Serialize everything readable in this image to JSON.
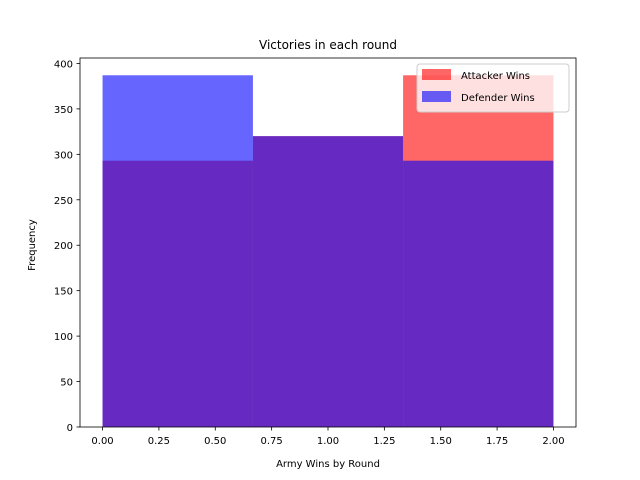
{
  "chart_data": {
    "type": "bar",
    "title": "Victories in each round",
    "xlabel": "Army Wins by Round",
    "ylabel": "Frequency",
    "xlim": [
      -0.1,
      2.1
    ],
    "ylim": [
      0,
      406
    ],
    "xticks": [
      0.0,
      0.25,
      0.5,
      0.75,
      1.0,
      1.25,
      1.5,
      1.75,
      2.0
    ],
    "xtick_labels": [
      "0.00",
      "0.25",
      "0.50",
      "0.75",
      "1.00",
      "1.25",
      "1.50",
      "1.75",
      "2.00"
    ],
    "yticks": [
      0,
      50,
      100,
      150,
      200,
      250,
      300,
      350,
      400
    ],
    "ytick_labels": [
      "0",
      "50",
      "100",
      "150",
      "200",
      "250",
      "300",
      "350",
      "400"
    ],
    "bins": [
      [
        0.0,
        0.667
      ],
      [
        0.667,
        1.333
      ],
      [
        1.333,
        2.0
      ]
    ],
    "series": [
      {
        "name": "Attacker Wins",
        "color": "#ff0000",
        "alpha": 0.6,
        "values": [
          293,
          320,
          387
        ]
      },
      {
        "name": "Defender Wins",
        "color": "#0000ff",
        "alpha": 0.6,
        "values": [
          387,
          320,
          293
        ]
      }
    ],
    "legend_position": "top-right",
    "grid": false
  }
}
